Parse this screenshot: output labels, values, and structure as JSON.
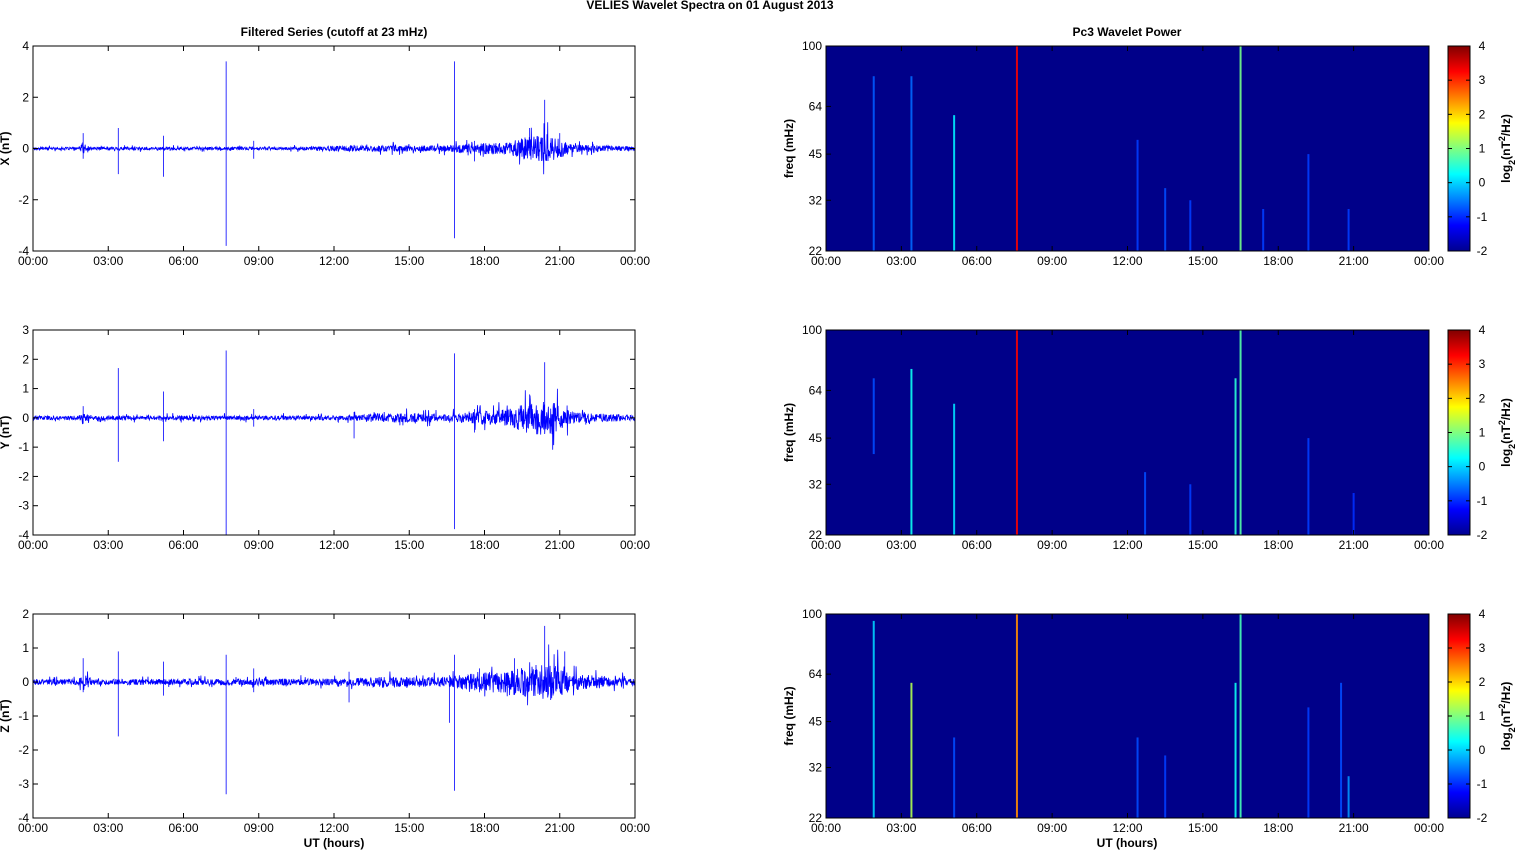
{
  "figure": {
    "suptitle": "VELIES Wavelet Spectra on 01 August    2013",
    "left_title": "Filtered Series (cutoff at 23 mHz)",
    "right_title": "Pc3 Wavelet Power",
    "xlabel": "UT (hours)"
  },
  "chart_data": [
    {
      "type": "line",
      "component": "X",
      "ylabel": "X (nT)",
      "ylim": [
        -4,
        4
      ],
      "yticks": [
        "4",
        "2",
        "0",
        "-2",
        "-4"
      ],
      "xlim_hours": [
        0,
        24
      ],
      "xticks": [
        "00:00",
        "03:00",
        "06:00",
        "09:00",
        "12:00",
        "15:00",
        "18:00",
        "21:00",
        "00:00"
      ],
      "line_color": "#0000ff",
      "envelope": [
        [
          0,
          0.05
        ],
        [
          1.8,
          0.05
        ],
        [
          2.0,
          0.2
        ],
        [
          2.3,
          0.06
        ],
        [
          10.5,
          0.06
        ],
        [
          11.5,
          0.1
        ],
        [
          13.5,
          0.12
        ],
        [
          16.5,
          0.12
        ],
        [
          17.5,
          0.2
        ],
        [
          19.0,
          0.25
        ],
        [
          19.8,
          0.5
        ],
        [
          20.5,
          0.6
        ],
        [
          21.5,
          0.15
        ],
        [
          24,
          0.08
        ]
      ],
      "spikes": [
        [
          2.0,
          0.6,
          -0.4
        ],
        [
          3.4,
          0.8,
          -1.0
        ],
        [
          5.2,
          0.5,
          -1.1
        ],
        [
          7.7,
          3.4,
          -3.8
        ],
        [
          8.8,
          0.3,
          -0.4
        ],
        [
          16.8,
          3.4,
          -3.5
        ],
        [
          17.6,
          0.3,
          -0.5
        ],
        [
          19.8,
          0.8,
          -0.2
        ],
        [
          20.4,
          1.9,
          -0.1
        ],
        [
          21.0,
          0.6,
          -0.2
        ]
      ]
    },
    {
      "type": "line",
      "component": "Y",
      "ylabel": "Y (nT)",
      "ylim": [
        -4,
        3
      ],
      "yticks": [
        "3",
        "2",
        "1",
        "0",
        "-1",
        "-2",
        "-3",
        "-4"
      ],
      "xlim_hours": [
        0,
        24
      ],
      "xticks": [
        "00:00",
        "03:00",
        "06:00",
        "09:00",
        "12:00",
        "15:00",
        "18:00",
        "21:00",
        "00:00"
      ],
      "line_color": "#0000ff",
      "envelope": [
        [
          0,
          0.07
        ],
        [
          1.8,
          0.07
        ],
        [
          2.0,
          0.15
        ],
        [
          2.3,
          0.07
        ],
        [
          12.5,
          0.08
        ],
        [
          13.5,
          0.15
        ],
        [
          15.0,
          0.15
        ],
        [
          16.5,
          0.12
        ],
        [
          17.5,
          0.2
        ],
        [
          19.0,
          0.3
        ],
        [
          19.8,
          0.55
        ],
        [
          20.6,
          0.6
        ],
        [
          21.5,
          0.2
        ],
        [
          24,
          0.09
        ]
      ],
      "spikes": [
        [
          2.0,
          0.4,
          -0.2
        ],
        [
          3.4,
          1.7,
          -1.5
        ],
        [
          5.2,
          0.9,
          -0.8
        ],
        [
          7.7,
          2.3,
          -4.0
        ],
        [
          8.8,
          0.3,
          -0.3
        ],
        [
          12.8,
          0.2,
          -0.7
        ],
        [
          16.8,
          2.2,
          -3.8
        ],
        [
          17.6,
          0.3,
          -0.5
        ],
        [
          19.8,
          0.8,
          -0.2
        ],
        [
          20.4,
          1.9,
          -0.1
        ]
      ]
    },
    {
      "type": "line",
      "component": "Z",
      "ylabel": "Z (nT)",
      "ylim": [
        -4,
        2
      ],
      "yticks": [
        "2",
        "1",
        "0",
        "-1",
        "-2",
        "-3",
        "-4"
      ],
      "xlim_hours": [
        0,
        24
      ],
      "xticks": [
        "00:00",
        "03:00",
        "06:00",
        "09:00",
        "12:00",
        "15:00",
        "18:00",
        "21:00",
        "00:00"
      ],
      "line_color": "#0000ff",
      "envelope": [
        [
          0,
          0.08
        ],
        [
          1.8,
          0.08
        ],
        [
          2.0,
          0.25
        ],
        [
          2.4,
          0.08
        ],
        [
          12.5,
          0.1
        ],
        [
          13.5,
          0.15
        ],
        [
          16.5,
          0.15
        ],
        [
          17.5,
          0.25
        ],
        [
          19.0,
          0.35
        ],
        [
          19.8,
          0.5
        ],
        [
          20.6,
          0.55
        ],
        [
          21.5,
          0.25
        ],
        [
          24,
          0.1
        ]
      ],
      "spikes": [
        [
          2.0,
          0.7,
          -0.3
        ],
        [
          3.4,
          0.9,
          -1.6
        ],
        [
          5.2,
          0.6,
          -0.4
        ],
        [
          7.7,
          0.8,
          -3.3
        ],
        [
          8.8,
          0.4,
          -0.3
        ],
        [
          12.6,
          0.3,
          -0.6
        ],
        [
          16.8,
          0.8,
          -3.2
        ],
        [
          16.6,
          0.2,
          -1.2
        ],
        [
          17.8,
          0.4,
          -0.3
        ],
        [
          19.2,
          0.7,
          -0.2
        ],
        [
          20.4,
          1.65,
          -0.1
        ],
        [
          21.2,
          0.9,
          -0.2
        ]
      ]
    },
    {
      "type": "heatmap",
      "component": "X",
      "ylabel": "freq (mHz)",
      "yscale": "log",
      "ylim_mHz": [
        22,
        100
      ],
      "yticks": [
        "100",
        "64",
        "45",
        "32",
        "22"
      ],
      "ytick_values": [
        100,
        64,
        45,
        32,
        22
      ],
      "xlim_hours": [
        0,
        24
      ],
      "xticks": [
        "00:00",
        "03:00",
        "06:00",
        "09:00",
        "12:00",
        "15:00",
        "18:00",
        "21:00",
        "00:00"
      ],
      "colormap": "jet",
      "colorbar_label": "log2(nT^2/Hz)",
      "colorbar_ticks": [
        "4",
        "3",
        "2",
        "1",
        "0",
        "-1",
        "-2"
      ],
      "clim": [
        -2,
        4
      ],
      "background_level": -2,
      "streaks": [
        [
          1.9,
          80,
          22,
          -1.4
        ],
        [
          3.4,
          80,
          22,
          -1.3
        ],
        [
          5.1,
          60,
          22,
          -0.4
        ],
        [
          7.6,
          100,
          22,
          3.2
        ],
        [
          12.4,
          50,
          22,
          -1.6
        ],
        [
          13.5,
          35,
          22,
          -1.5
        ],
        [
          14.5,
          32,
          22,
          -1.6
        ],
        [
          16.5,
          100,
          22,
          0.5
        ],
        [
          17.4,
          30,
          22,
          -1.6
        ],
        [
          19.2,
          45,
          22,
          -1.6
        ],
        [
          20.8,
          30,
          22,
          -1.6
        ]
      ]
    },
    {
      "type": "heatmap",
      "component": "Y",
      "ylabel": "freq (mHz)",
      "yscale": "log",
      "ylim_mHz": [
        22,
        100
      ],
      "yticks": [
        "100",
        "64",
        "45",
        "32",
        "22"
      ],
      "ytick_values": [
        100,
        64,
        45,
        32,
        22
      ],
      "xlim_hours": [
        0,
        24
      ],
      "xticks": [
        "00:00",
        "03:00",
        "06:00",
        "09:00",
        "12:00",
        "15:00",
        "18:00",
        "21:00",
        "00:00"
      ],
      "colormap": "jet",
      "colorbar_label": "log2(nT^2/Hz)",
      "colorbar_ticks": [
        "4",
        "3",
        "2",
        "1",
        "0",
        "-1",
        "-2"
      ],
      "clim": [
        -2,
        4
      ],
      "background_level": -2,
      "streaks": [
        [
          1.9,
          70,
          40,
          -1.5
        ],
        [
          3.4,
          75,
          22,
          -0.2
        ],
        [
          5.1,
          58,
          22,
          -0.5
        ],
        [
          7.6,
          100,
          22,
          3.2
        ],
        [
          12.7,
          35,
          22,
          -1.5
        ],
        [
          14.5,
          32,
          22,
          -1.6
        ],
        [
          16.3,
          70,
          22,
          0.0
        ],
        [
          16.5,
          100,
          22,
          0.3
        ],
        [
          19.2,
          45,
          22,
          -1.6
        ],
        [
          21.0,
          30,
          22,
          -1.7
        ]
      ]
    },
    {
      "type": "heatmap",
      "component": "Z",
      "ylabel": "freq (mHz)",
      "yscale": "log",
      "ylim_mHz": [
        22,
        100
      ],
      "yticks": [
        "100",
        "64",
        "45",
        "32",
        "22"
      ],
      "ytick_values": [
        100,
        64,
        45,
        32,
        22
      ],
      "xlim_hours": [
        0,
        24
      ],
      "xticks": [
        "00:00",
        "03:00",
        "06:00",
        "09:00",
        "12:00",
        "15:00",
        "18:00",
        "21:00",
        "00:00"
      ],
      "colormap": "jet",
      "colorbar_label": "log2(nT^2/Hz)",
      "colorbar_ticks": [
        "4",
        "3",
        "2",
        "1",
        "0",
        "-1",
        "-2"
      ],
      "clim": [
        -2,
        4
      ],
      "background_level": -2,
      "streaks": [
        [
          1.9,
          95,
          22,
          -0.6
        ],
        [
          3.4,
          60,
          22,
          0.9
        ],
        [
          5.1,
          40,
          22,
          -1.5
        ],
        [
          7.6,
          100,
          22,
          2.2
        ],
        [
          12.4,
          40,
          22,
          -1.5
        ],
        [
          13.5,
          35,
          22,
          -1.6
        ],
        [
          16.3,
          60,
          22,
          -0.2
        ],
        [
          16.5,
          100,
          22,
          0.2
        ],
        [
          19.2,
          50,
          22,
          -1.6
        ],
        [
          20.5,
          60,
          22,
          -1.5
        ],
        [
          20.8,
          30,
          22,
          -1.0
        ]
      ]
    }
  ]
}
